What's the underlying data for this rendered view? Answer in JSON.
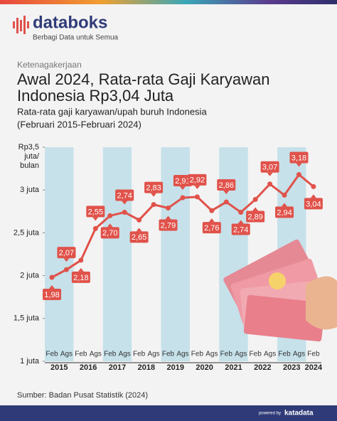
{
  "header": {
    "brand": "databoks",
    "tagline": "Berbagi Data untuk Semua"
  },
  "chart_data": {
    "type": "line",
    "category": "Ketenagakerjaan",
    "title": [
      "Awal 2024, Rata-rata Gaji Karyawan",
      "Indonesia Rp3,04 Juta"
    ],
    "subtitle": [
      "Rata-rata gaji karyawan/upah buruh Indonesia",
      "(Februari 2015-Februari 2024)"
    ],
    "categories": [
      "Feb",
      "Ags",
      "Feb",
      "Ags",
      "Feb",
      "Ags",
      "Feb",
      "Ags",
      "Feb",
      "Ags",
      "Feb",
      "Ags",
      "Feb",
      "Ags",
      "Feb",
      "Ags",
      "Feb",
      "Ags",
      "Feb"
    ],
    "years": [
      "2015",
      "2016",
      "2017",
      "2018",
      "2019",
      "2020",
      "2021",
      "2022",
      "2023",
      "2024"
    ],
    "series": [
      {
        "name": "Rata-rata gaji",
        "color": "#e0524a",
        "values": [
          1.98,
          2.07,
          2.18,
          2.55,
          2.7,
          2.74,
          2.65,
          2.83,
          2.79,
          2.91,
          2.92,
          2.76,
          2.86,
          2.74,
          2.89,
          3.07,
          2.94,
          3.18,
          3.04
        ],
        "value_labels": [
          "1,98",
          "2,07",
          "2,18",
          "2,55",
          "2,70",
          "2,74",
          "2,65",
          "2,83",
          "2,79",
          "2,91",
          "2,92",
          "2,76",
          "2,86",
          "2,74",
          "2,89",
          "3,07",
          "2,94",
          "3,18",
          "3,04"
        ]
      }
    ],
    "ylim": [
      1,
      3.5
    ],
    "yticks": [
      {
        "value": 1,
        "label": "1 juta"
      },
      {
        "value": 1.5,
        "label": "1,5 juta"
      },
      {
        "value": 2,
        "label": "2 juta"
      },
      {
        "value": 2.5,
        "label": "2,5 juta"
      },
      {
        "value": 3,
        "label": "3 juta"
      },
      {
        "value": 3.5,
        "label": "Rp3,5 juta/ bulan"
      }
    ],
    "band_color": "#c6e1ea",
    "source": "Sumber: Badan Pusat Statistik (2024)"
  },
  "footer": {
    "powered": "powered by",
    "logo": "katadata"
  }
}
